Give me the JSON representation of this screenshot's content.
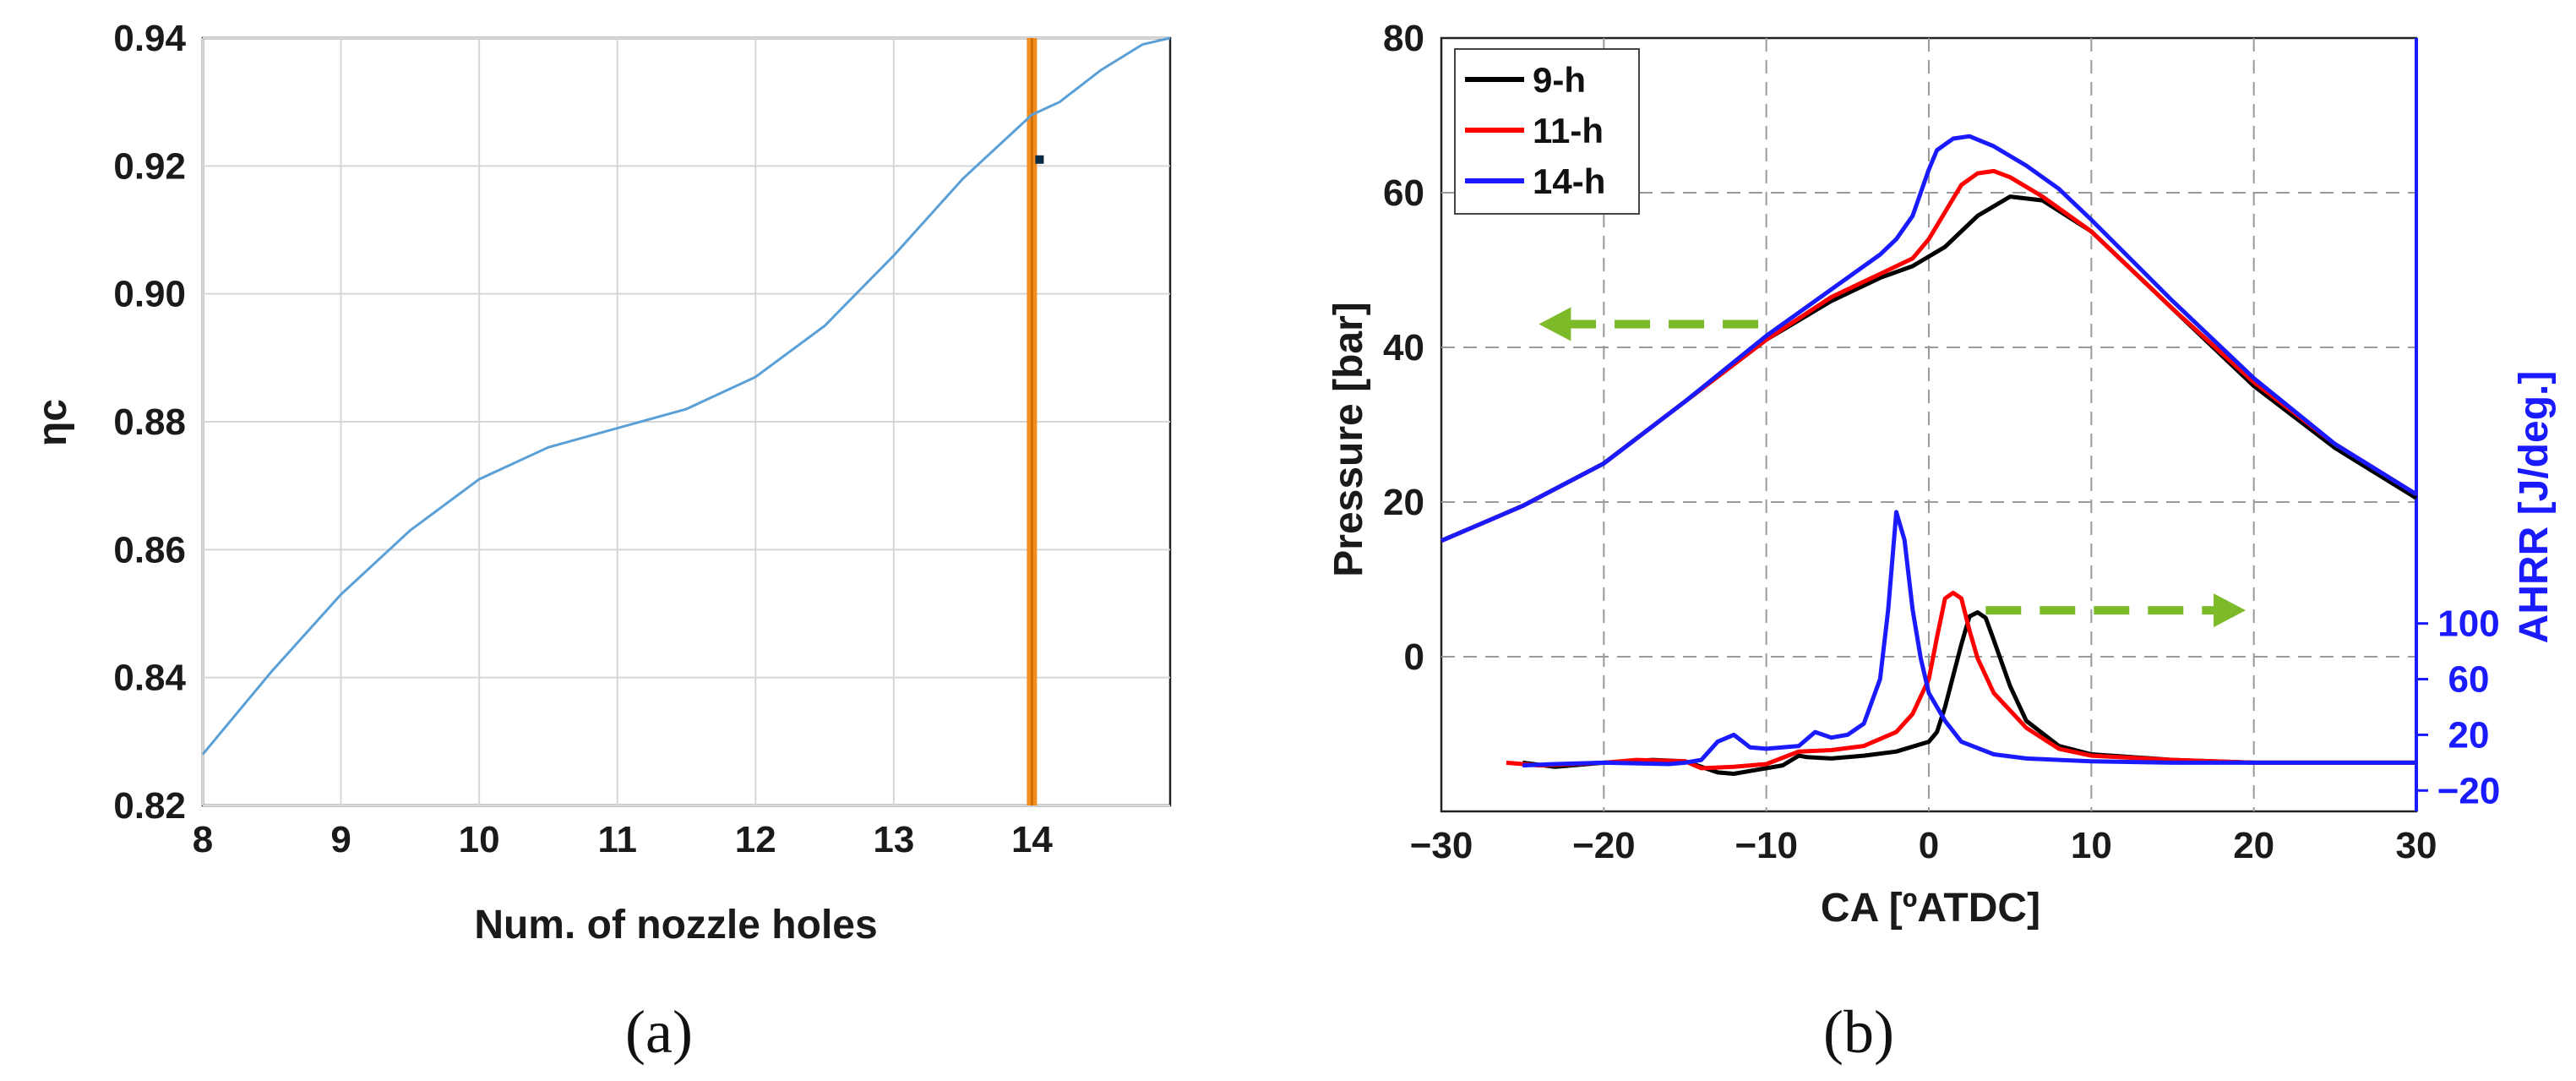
{
  "chart_data": [
    {
      "id": "a",
      "panel_label": "(a)",
      "type": "line",
      "title": "",
      "xlabel": "Num. of nozzle holes",
      "ylabel": "ηc",
      "xlim": [
        8,
        15
      ],
      "ylim": [
        0.82,
        0.94
      ],
      "xticks": [
        8,
        9,
        10,
        11,
        12,
        13,
        14
      ],
      "xtick_labels": [
        "8",
        "9",
        "10",
        "11",
        "12",
        "13",
        "14"
      ],
      "yticks": [
        0.82,
        0.84,
        0.86,
        0.88,
        0.9,
        0.92,
        0.94
      ],
      "ytick_labels": [
        "0.82",
        "0.84",
        "0.86",
        "0.88",
        "0.90",
        "0.92",
        "0.94"
      ],
      "grid": true,
      "series": [
        {
          "name": "ηc",
          "color": "#5aa0d6",
          "x": [
            8,
            8.5,
            9,
            9.5,
            10,
            10.5,
            11,
            11.5,
            12,
            12.5,
            13,
            13.5,
            14,
            14.2,
            14.5,
            14.8,
            15
          ],
          "y": [
            0.828,
            0.841,
            0.853,
            0.863,
            0.871,
            0.876,
            0.879,
            0.882,
            0.887,
            0.895,
            0.906,
            0.918,
            0.928,
            0.93,
            0.935,
            0.939,
            0.94
          ]
        }
      ],
      "marker": {
        "x": 14,
        "color": "#f28c1c",
        "point_y": 0.921,
        "point_color": "#0a2a44"
      }
    },
    {
      "id": "b",
      "panel_label": "(b)",
      "type": "line",
      "title": "",
      "xlabel": "CA [ºATDC]",
      "ylabel": "Pressure [bar]",
      "y2label": "AHRR [J/deg.]",
      "y2color": "#1a1aff",
      "xlim": [
        -30,
        30
      ],
      "ylim": [
        -20,
        80
      ],
      "xticks": [
        -30,
        -20,
        -10,
        0,
        10,
        20,
        30
      ],
      "xtick_labels": [
        "−30",
        "−20",
        "−10",
        "0",
        "10",
        "20",
        "30"
      ],
      "yticks": [
        0,
        20,
        40,
        60,
        80
      ],
      "ytick_labels": [
        "0",
        "20",
        "40",
        "60",
        "80"
      ],
      "y2ticks": [
        -20,
        20,
        60,
        100
      ],
      "y2tick_labels": [
        "−20",
        "20",
        "60",
        "100"
      ],
      "grid": "dashed",
      "legend": {
        "position": "top-left",
        "entries": [
          "9-h",
          "11-h",
          "14-h"
        ]
      },
      "series_pressure": [
        {
          "name": "9-h",
          "color": "#000000",
          "x": [
            -30,
            -25,
            -20,
            -15,
            -10,
            -6,
            -3,
            -1,
            1,
            3,
            5,
            7,
            10,
            15,
            20,
            25,
            30
          ],
          "y": [
            15,
            19.5,
            25,
            33,
            41,
            46,
            49,
            50.5,
            53,
            57,
            59.5,
            59,
            55,
            45,
            35,
            27,
            20.5
          ]
        },
        {
          "name": "11-h",
          "color": "#ff0000",
          "x": [
            -30,
            -25,
            -20,
            -15,
            -10,
            -6,
            -3,
            -1,
            0,
            1,
            2,
            3,
            4,
            5,
            7,
            10,
            15,
            20,
            25,
            30
          ],
          "y": [
            15,
            19.5,
            25,
            33,
            41,
            46.5,
            49.5,
            51.5,
            54,
            57.5,
            61,
            62.5,
            62.8,
            62,
            59.5,
            55,
            45,
            35.5,
            27.5,
            21
          ]
        },
        {
          "name": "14-h",
          "color": "#1a1aff",
          "x": [
            -30,
            -25,
            -20,
            -15,
            -10,
            -6,
            -3,
            -2,
            -1,
            0,
            0.5,
            1.5,
            2.5,
            4,
            6,
            8,
            10,
            15,
            20,
            25,
            30
          ],
          "y": [
            15,
            19.5,
            25,
            33,
            41.5,
            47.5,
            52,
            54,
            57,
            63,
            65.5,
            67,
            67.3,
            66,
            63.5,
            60.5,
            56.5,
            46,
            36,
            27.5,
            21
          ]
        }
      ],
      "series_ahrr": [
        {
          "name": "9-h",
          "color": "#000000",
          "x": [
            -25,
            -23,
            -20,
            -17,
            -15,
            -14,
            -13,
            -12,
            -11,
            -9,
            -8,
            -7.5,
            -6,
            -4,
            -2,
            0,
            0.5,
            1,
            2,
            2.5,
            3,
            3.5,
            4,
            5,
            6,
            8,
            10,
            15,
            20,
            25,
            30
          ],
          "y": [
            0,
            -3,
            0,
            2,
            1,
            -3,
            -7,
            -8,
            -6,
            -2,
            5,
            4,
            3,
            5,
            8,
            15,
            22,
            40,
            85,
            105,
            108,
            104,
            88,
            55,
            30,
            12,
            6,
            2,
            0,
            0,
            0
          ]
        },
        {
          "name": "11-h",
          "color": "#ff0000",
          "x": [
            -26,
            -24,
            -20,
            -18,
            -15,
            -14,
            -12,
            -10,
            -8,
            -6,
            -4,
            -2,
            -1,
            0,
            0.5,
            1,
            1.5,
            2,
            2.5,
            3,
            4,
            6,
            8,
            10,
            15,
            20,
            25,
            30
          ],
          "y": [
            0,
            -2,
            0,
            2,
            1,
            -4,
            -3,
            -1,
            8,
            9,
            12,
            22,
            35,
            60,
            90,
            118,
            122,
            118,
            95,
            75,
            50,
            25,
            10,
            5,
            2,
            0,
            0,
            0
          ]
        },
        {
          "name": "14-h",
          "color": "#1a1aff",
          "x": [
            -25,
            -23,
            -20,
            -16,
            -15,
            -14,
            -13,
            -12,
            -11,
            -10,
            -8,
            -7,
            -6,
            -5,
            -4,
            -3,
            -2.5,
            -2,
            -1.5,
            -1,
            -0.5,
            0,
            1,
            2,
            4,
            6,
            8,
            10,
            15,
            20,
            25,
            30
          ],
          "y": [
            -2,
            -1,
            0,
            -1,
            0,
            2,
            15,
            20,
            11,
            10,
            12,
            22,
            18,
            20,
            28,
            60,
            110,
            180,
            160,
            110,
            75,
            50,
            30,
            15,
            6,
            3,
            2,
            1,
            0,
            0,
            0,
            0
          ]
        }
      ],
      "annotations": [
        {
          "kind": "arrow-left",
          "color": "#7cba2a",
          "x_from": -10.5,
          "x_to": -24,
          "y": 43
        },
        {
          "kind": "arrow-right",
          "color": "#7cba2a",
          "x_from": 3.5,
          "x_to": 19.5,
          "y": 6
        }
      ]
    }
  ]
}
